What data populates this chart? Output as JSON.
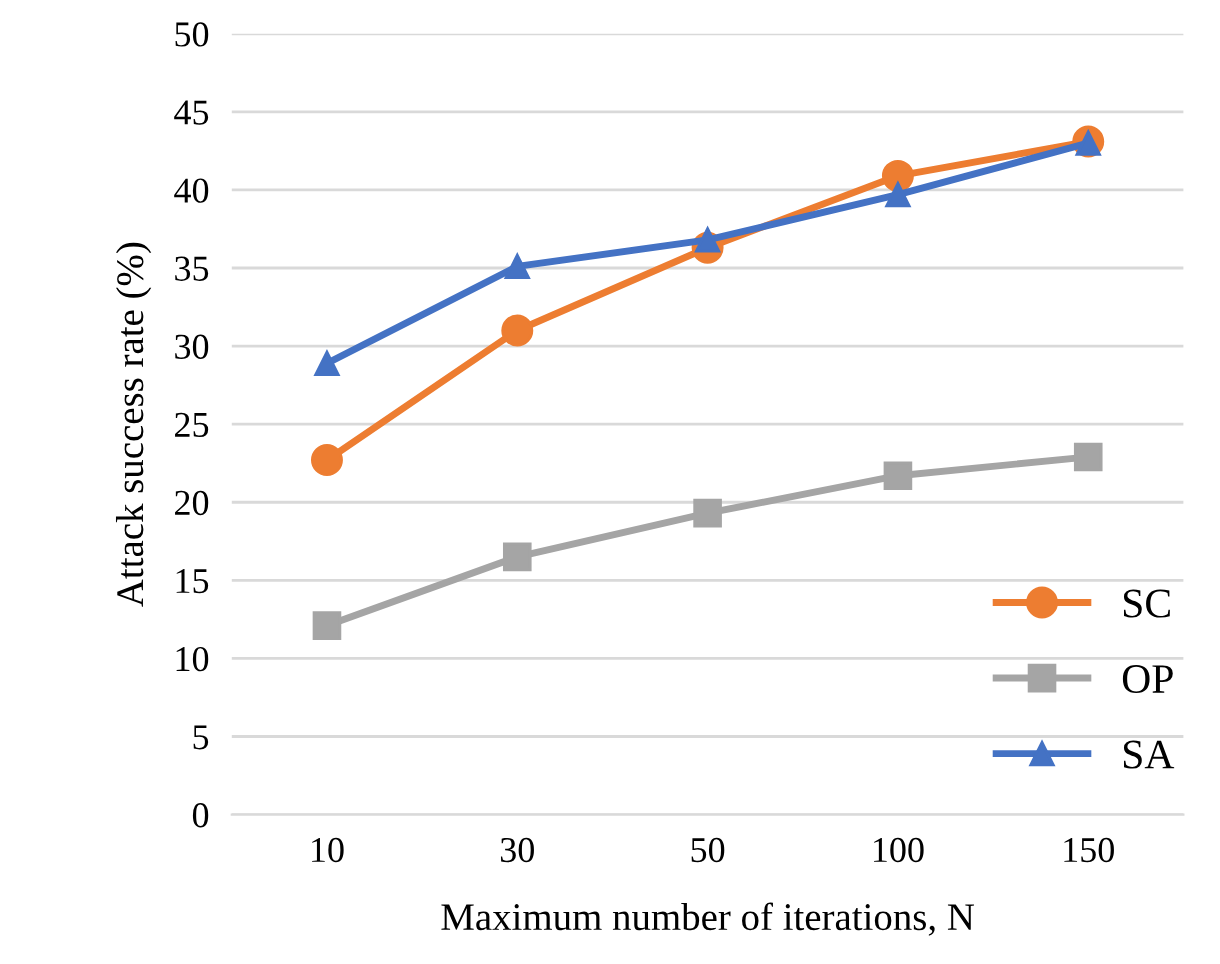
{
  "chart_data": {
    "type": "line",
    "xlabel": "Maximum number of iterations, N",
    "ylabel": "Attack success rate (%)",
    "categories": [
      "10",
      "30",
      "50",
      "100",
      "150"
    ],
    "series": [
      {
        "name": "SC",
        "color": "#ed7d31",
        "marker": "circle",
        "values": [
          22.7,
          31.0,
          36.3,
          40.9,
          43.1
        ]
      },
      {
        "name": "OP",
        "color": "#a5a5a5",
        "marker": "square",
        "values": [
          12.1,
          16.5,
          19.3,
          21.7,
          22.9
        ]
      },
      {
        "name": "SA",
        "color": "#4472c4",
        "marker": "triangle",
        "values": [
          28.9,
          35.1,
          36.8,
          39.7,
          43.0
        ]
      }
    ],
    "ylim": [
      0,
      50
    ],
    "yticks": [
      0,
      5,
      10,
      15,
      20,
      25,
      30,
      35,
      40,
      45,
      50
    ],
    "grid": "y",
    "legend": "bottom right",
    "line_style": "solid"
  }
}
